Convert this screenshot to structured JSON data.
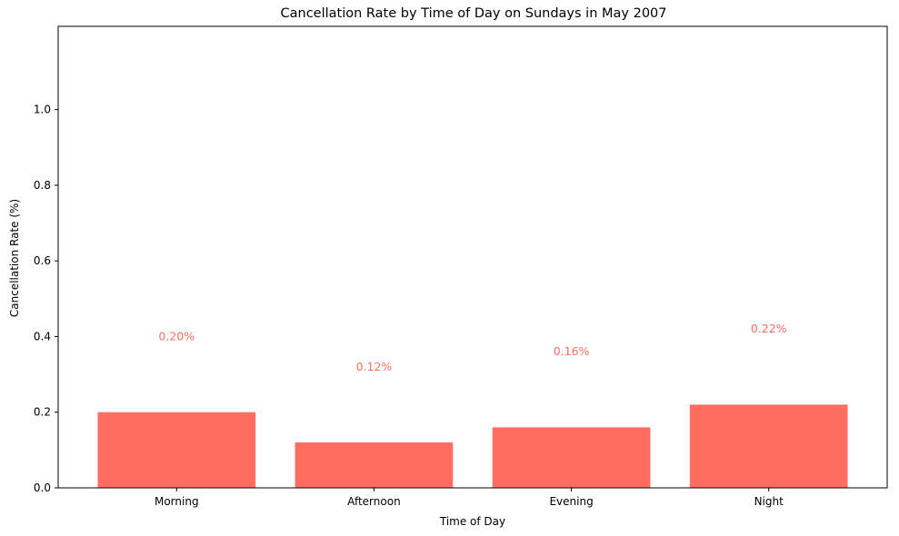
{
  "chart_data": {
    "type": "bar",
    "title": "Cancellation Rate by Time of Day on Sundays in May 2007",
    "xlabel": "Time of Day",
    "ylabel": "Cancellation Rate (%)",
    "categories": [
      "Morning",
      "Afternoon",
      "Evening",
      "Night"
    ],
    "values": [
      0.2,
      0.12,
      0.16,
      0.22
    ],
    "data_labels": [
      "0.20%",
      "0.12%",
      "0.16%",
      "0.22%"
    ],
    "ylim": [
      0,
      1.22
    ],
    "yticks": [
      0.0,
      0.2,
      0.4,
      0.6,
      0.8,
      1.0
    ],
    "ytick_labels": [
      "0.0",
      "0.2",
      "0.4",
      "0.6",
      "0.8",
      "1.0"
    ],
    "grid": false,
    "colors": {
      "bar": "#ff6f61",
      "data_label": "#ff6f61"
    }
  }
}
